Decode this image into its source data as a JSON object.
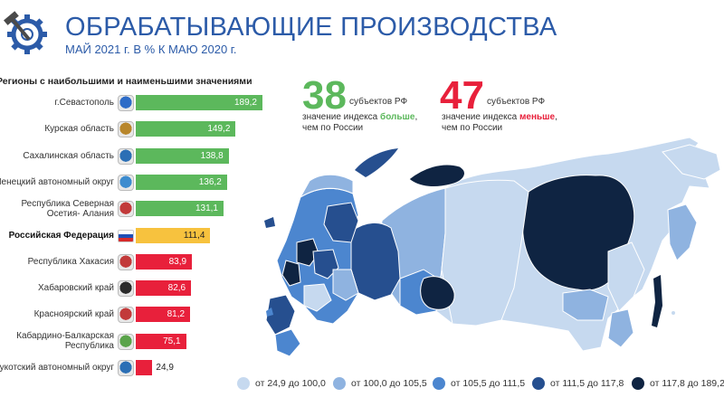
{
  "header": {
    "title": "ОБРАБАТЫВАЮЩИЕ ПРОИЗВОДСТВА",
    "subtitle": "МАЙ 2021 г. В % К МАЮ 2020 г."
  },
  "chart_data": {
    "type": "bar",
    "orientation": "horizontal",
    "title": "Регионы с наибольшими и наименьшими значениями",
    "categories": [
      "г.Севастополь",
      "Курская область",
      "Сахалинская область",
      "Ненецкий автономный округ",
      "Республика Северная Осетия- Алания",
      "Российская Федерация",
      "Республика Хакасия",
      "Хабаровский край",
      "Красноярский край",
      "Кабардино-Балкарская Республика",
      "Чукотский автономный округ"
    ],
    "label_lines": [
      [
        "г.Севастополь"
      ],
      [
        "Курская область"
      ],
      [
        "Сахалинская область"
      ],
      [
        "Ненецкий автономный округ"
      ],
      [
        "Республика Северная",
        "Осетия- Алания"
      ],
      [
        "Российская Федерация"
      ],
      [
        "Республика Хакасия"
      ],
      [
        "Хабаровский край"
      ],
      [
        "Красноярский край"
      ],
      [
        "Кабардино-Балкарская",
        "Республика"
      ],
      [
        "Чукотский автономный округ"
      ]
    ],
    "values": [
      189.2,
      149.2,
      138.8,
      136.2,
      131.1,
      111.4,
      83.9,
      82.6,
      81.2,
      75.1,
      24.9
    ],
    "value_labels": [
      "189,2",
      "149,2",
      "138,8",
      "136,2",
      "131,1",
      "111,4",
      "83,9",
      "82,6",
      "81,2",
      "75,1",
      "24,9"
    ],
    "bold_index": 5,
    "xlim": [
      0,
      189.2
    ],
    "colors": {
      "above": "#5cb85c",
      "federation": "#f7c23e",
      "below": "#e8203b"
    }
  },
  "summary": {
    "more_count": "38",
    "more_text1": "субъектов РФ",
    "more_text2_prefix": "значение индекса ",
    "more_word": "больше",
    "more_text2_suffix": ",",
    "more_text3": "чем по России",
    "more_color": "#5cb85c",
    "less_count": "47",
    "less_text1": "субъектов РФ",
    "less_text2_prefix": "значение индекса ",
    "less_word": "меньше",
    "less_text2_suffix": ",",
    "less_text3": "чем по России",
    "less_color": "#e8203b"
  },
  "legend": [
    {
      "label": "от 24,9 до 100,0",
      "color": "#c6d9ef"
    },
    {
      "label": "от 100,0 до 105,5",
      "color": "#8fb3e0"
    },
    {
      "label": "от 105,5 до 111,5",
      "color": "#4c86cf"
    },
    {
      "label": "от 111,5 до 117,8",
      "color": "#264f8f"
    },
    {
      "label": "от 117,8 до 189,2",
      "color": "#0f2442"
    }
  ]
}
